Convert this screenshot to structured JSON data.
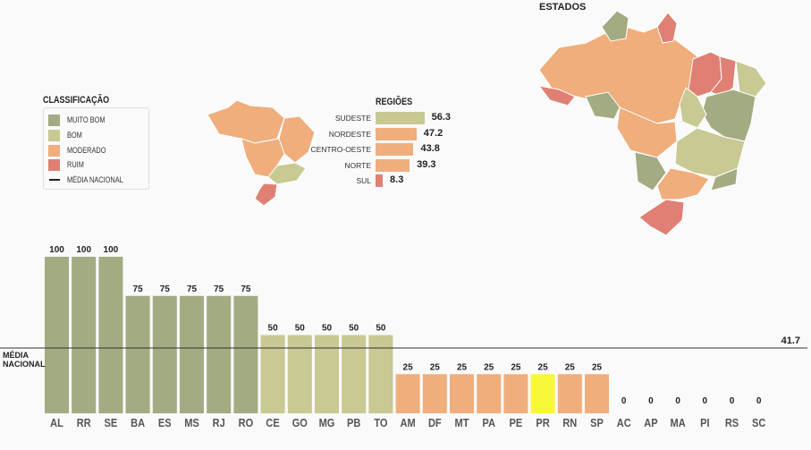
{
  "legend": {
    "title": "CLASSIFICAÇÃO",
    "items": [
      {
        "label": "MUITO BOM",
        "color": "#a3ab82"
      },
      {
        "label": "BOM",
        "color": "#c8c993"
      },
      {
        "label": "MODERADO",
        "color": "#efae7c"
      },
      {
        "label": "RUIM",
        "color": "#e07f74"
      }
    ],
    "median_label": "MÉDIA NACIONAL"
  },
  "regions": {
    "title": "REGIÕES",
    "items": [
      {
        "name": "SUDESTE",
        "value": 56.3,
        "value_label": "56.3",
        "color": "#c8c993"
      },
      {
        "name": "NORDESTE",
        "value": 47.2,
        "value_label": "47.2",
        "color": "#efae7c"
      },
      {
        "name": "CENTRO-OESTE",
        "value": 43.8,
        "value_label": "43.8",
        "color": "#efae7c"
      },
      {
        "name": "NORTE",
        "value": 39.3,
        "value_label": "39.3",
        "color": "#efae7c"
      },
      {
        "name": "SUL",
        "value": 8.3,
        "value_label": "8.3",
        "color": "#e07f74"
      }
    ]
  },
  "states_map_title": "ESTADOS",
  "chart_data": {
    "type": "bar",
    "categories": [
      "AL",
      "RR",
      "SE",
      "BA",
      "ES",
      "MS",
      "RJ",
      "RO",
      "CE",
      "GO",
      "MG",
      "PB",
      "TO",
      "AM",
      "DF",
      "MT",
      "PA",
      "PE",
      "PR",
      "RN",
      "SP",
      "AC",
      "AP",
      "MA",
      "PI",
      "RS",
      "SC"
    ],
    "values": [
      100,
      100,
      100,
      75,
      75,
      75,
      75,
      75,
      50,
      50,
      50,
      50,
      50,
      25,
      25,
      25,
      25,
      25,
      25,
      25,
      25,
      0,
      0,
      0,
      0,
      0,
      0
    ],
    "value_labels": [
      "100",
      "100",
      "100",
      "75",
      "75",
      "75",
      "75",
      "75",
      "50",
      "50",
      "50",
      "50",
      "50",
      "25",
      "25",
      "25",
      "25",
      "25",
      "25",
      "25",
      "25",
      "0",
      "0",
      "0",
      "0",
      "0",
      "0"
    ],
    "highlight": "PR",
    "highlight_color": "#f7f73a",
    "colors": {
      "100": "#a3ab82",
      "75": "#a3ab82",
      "50": "#c8c993",
      "25": "#efae7c",
      "0": "#e07f74"
    },
    "reference_line": {
      "value": 41.7,
      "label": "41.7",
      "name": "MÉDIA NACIONAL",
      "name_lines": [
        "MÉDIA",
        "NACIONAL"
      ]
    },
    "ylim": [
      0,
      100
    ],
    "grid": false,
    "title": "",
    "xlabel": "",
    "ylabel": ""
  }
}
